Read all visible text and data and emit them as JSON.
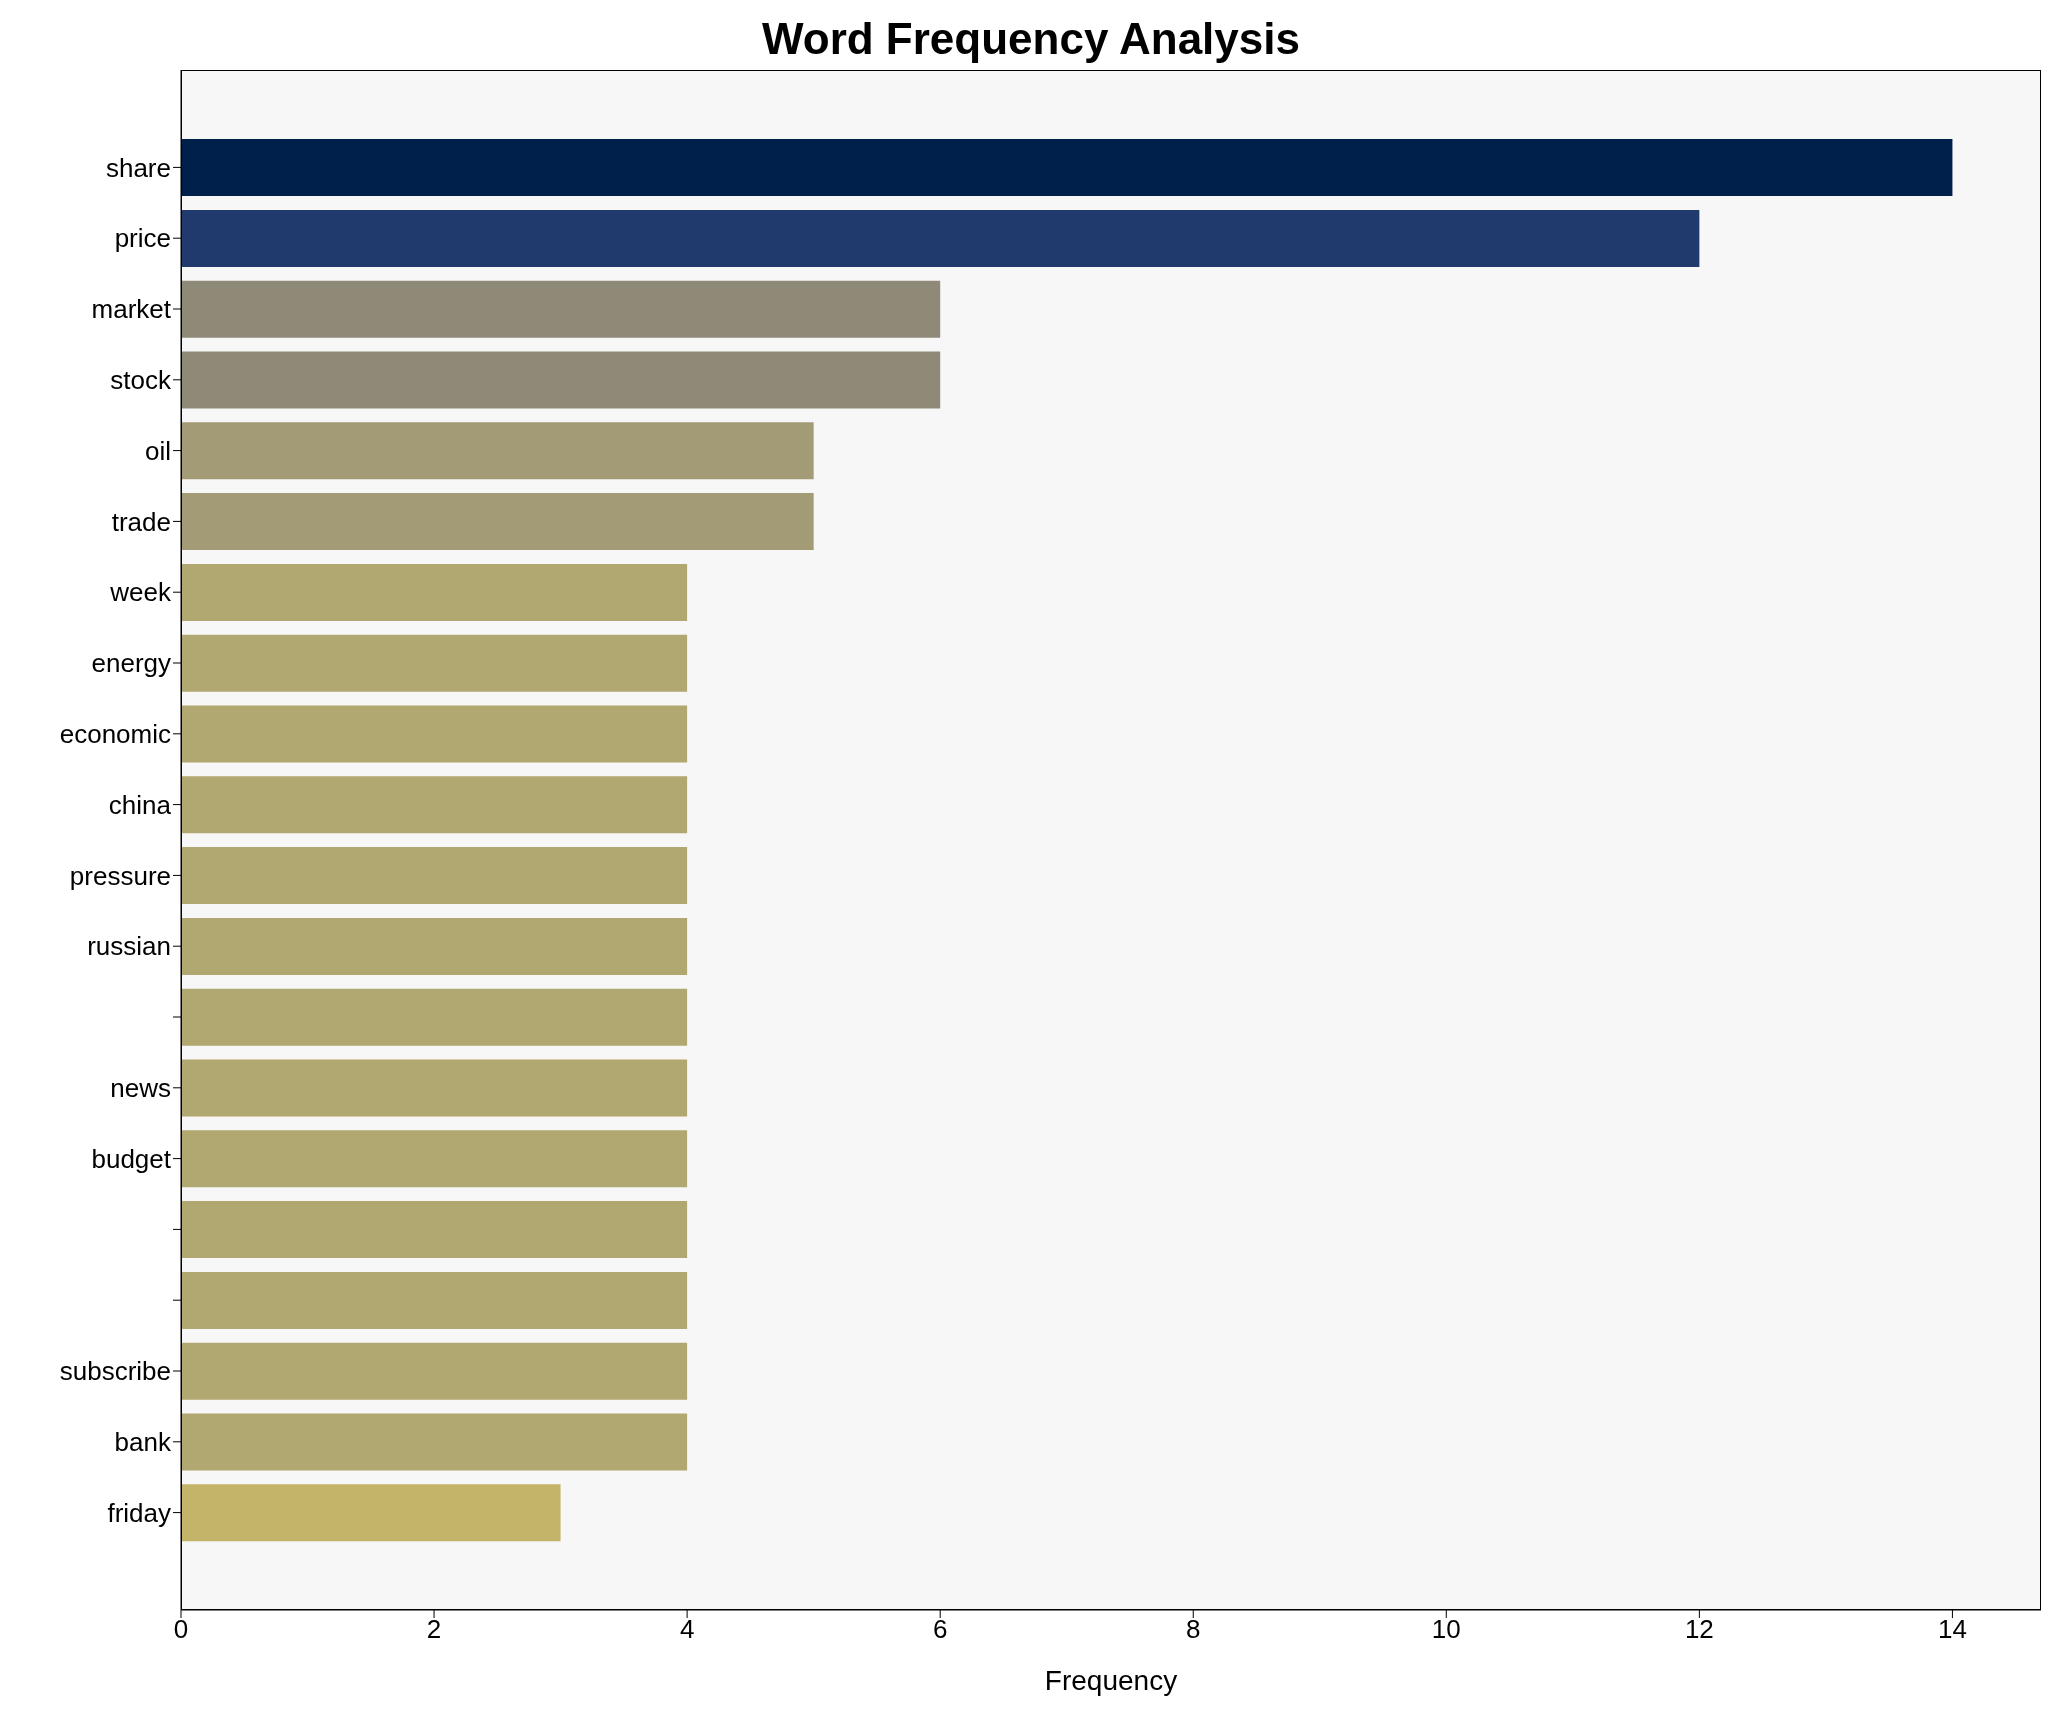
{
  "chart_data": {
    "type": "bar",
    "orientation": "horizontal",
    "title": "Word Frequency Analysis",
    "xlabel": "Frequency",
    "categories": [
      "share",
      "price",
      "market",
      "stock",
      "oil",
      "trade",
      "week",
      "energy",
      "economic",
      "china",
      "pressure",
      "russian",
      null,
      "news",
      "budget",
      null,
      null,
      "subscribe",
      "bank",
      "friday"
    ],
    "values": [
      14,
      12,
      6,
      6,
      5,
      5,
      4,
      4,
      4,
      4,
      4,
      4,
      4,
      4,
      4,
      4,
      4,
      4,
      4,
      3
    ],
    "colors": [
      "#00204c",
      "#213a6e",
      "#8f8a78",
      "#8f8a78",
      "#a39a76",
      "#a39a76",
      "#b1a770",
      "#b1a770",
      "#b1a770",
      "#b1a770",
      "#b1a770",
      "#b1a770",
      "#b1a770",
      "#b1a770",
      "#b1a770",
      "#b1a770",
      "#b1a770",
      "#b1a770",
      "#b1a770",
      "#c4b46a"
    ],
    "xlim": [
      0,
      14.7
    ],
    "xticks": [
      0,
      2,
      4,
      6,
      8,
      10,
      12,
      14
    ],
    "grid": false
  }
}
